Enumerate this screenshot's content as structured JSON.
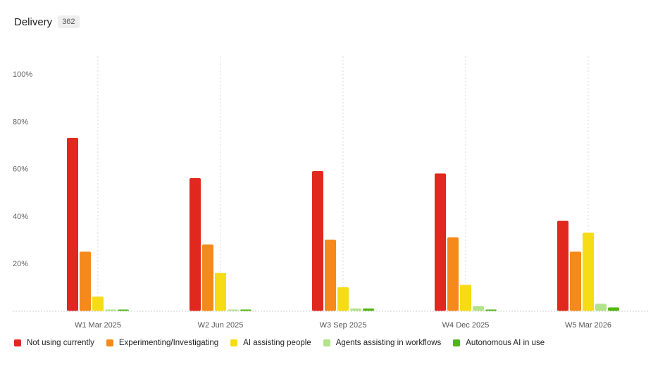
{
  "header": {
    "title": "Delivery",
    "count": "362"
  },
  "chart_data": {
    "type": "bar",
    "categories": [
      "W1 Mar 2025",
      "W2 Jun 2025",
      "W3 Sep 2025",
      "W4 Dec 2025",
      "W5 Mar 2026"
    ],
    "ylim": [
      0,
      100
    ],
    "yticks": [
      20,
      40,
      60,
      80,
      100
    ],
    "ytick_labels": [
      "20%",
      "40%",
      "60%",
      "80%",
      "100%"
    ],
    "grid": "vertical dotted lines at category centers",
    "legend_position": "bottom-left",
    "series": [
      {
        "name": "Not using currently",
        "color": "#e0281e",
        "values": [
          73,
          56,
          59,
          58,
          38
        ]
      },
      {
        "name": "Experimenting/Investigating",
        "color": "#f5891b",
        "values": [
          25,
          28,
          30,
          31,
          25
        ]
      },
      {
        "name": "AI assisting people",
        "color": "#f5dc14",
        "values": [
          6,
          16,
          10,
          11,
          33
        ]
      },
      {
        "name": "Agents assisting in workflows",
        "color": "#b2e38a",
        "values": [
          0.5,
          0.5,
          1,
          2,
          3
        ]
      },
      {
        "name": "Autonomous AI in use",
        "color": "#52b510",
        "values": [
          0.5,
          0.5,
          1,
          0.5,
          1.5
        ]
      }
    ]
  }
}
